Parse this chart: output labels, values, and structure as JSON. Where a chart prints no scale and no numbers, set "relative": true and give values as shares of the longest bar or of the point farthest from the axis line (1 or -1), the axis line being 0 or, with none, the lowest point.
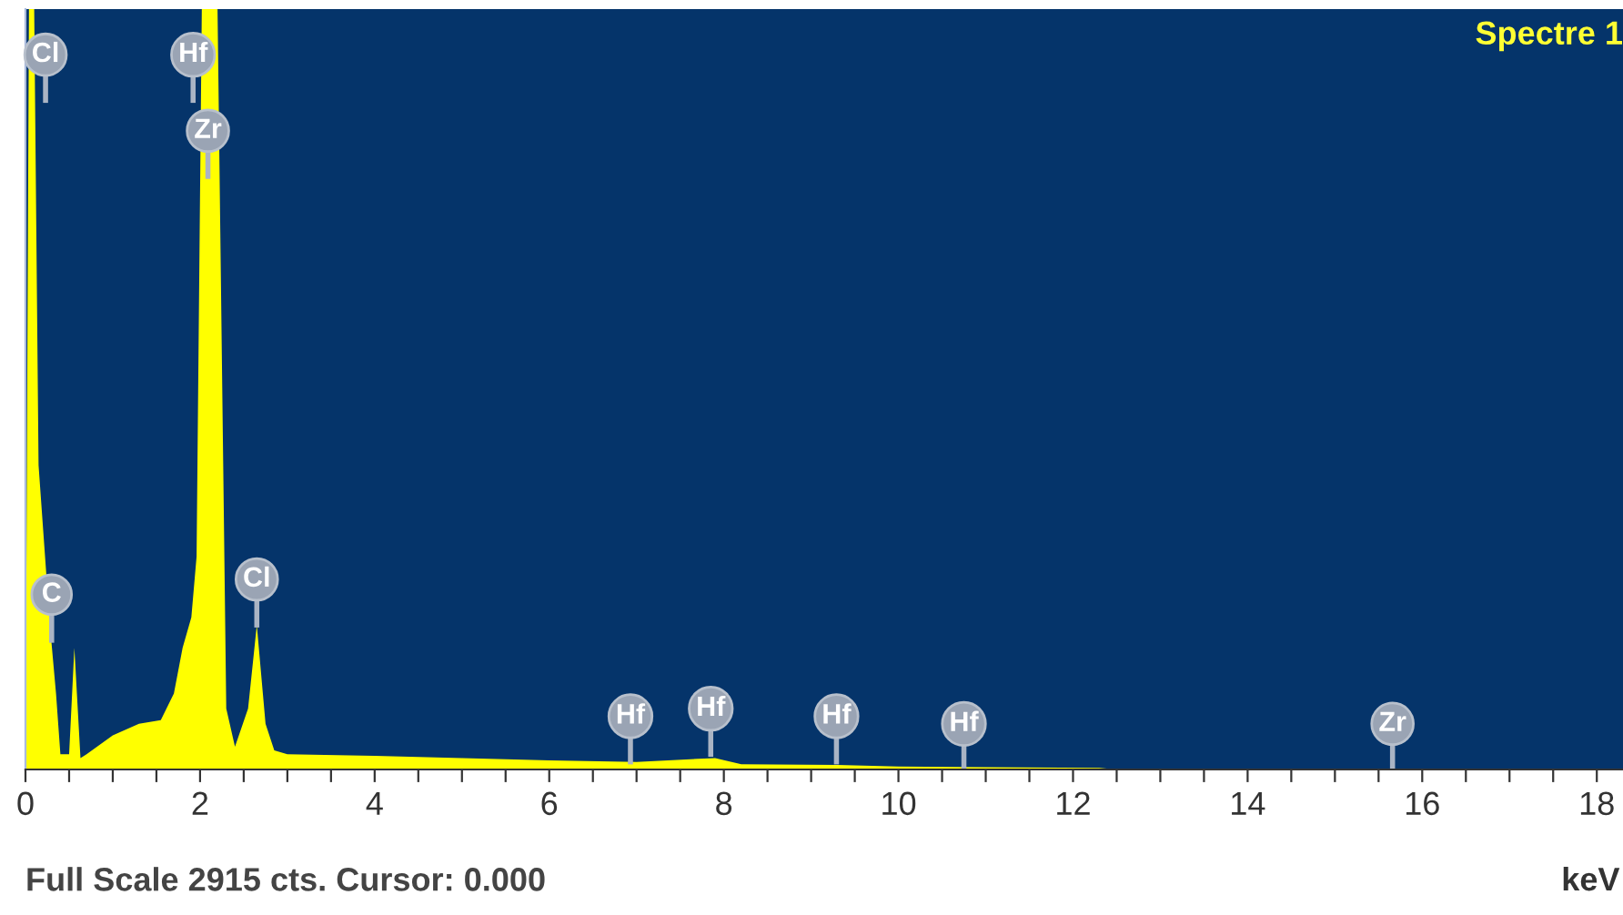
{
  "chart_data": {
    "type": "area",
    "title": "Spectre 1",
    "xlabel": "keV",
    "relative": true,
    "x": [
      0.0,
      0.04,
      0.1,
      0.15,
      0.28,
      0.35,
      0.4,
      0.5,
      0.56,
      0.63,
      0.7,
      1.0,
      1.3,
      1.55,
      1.7,
      1.8,
      1.9,
      1.96,
      2.02,
      2.2,
      2.3,
      2.4,
      2.55,
      2.65,
      2.75,
      2.85,
      3.0,
      4.0,
      5.0,
      6.0,
      7.0,
      7.9,
      8.2,
      9.3,
      10.0,
      11.0,
      12.3,
      12.5,
      18.3
    ],
    "series": [
      {
        "color": "#ffff00",
        "values": [
          0,
          1.0,
          1.0,
          0.4,
          0.19,
          0.1,
          0.02,
          0.02,
          0.16,
          0.015,
          0.02,
          0.045,
          0.06,
          0.065,
          0.1,
          0.16,
          0.2,
          0.28,
          1.0,
          1.0,
          0.08,
          0.03,
          0.08,
          0.19,
          0.06,
          0.025,
          0.02,
          0.018,
          0.015,
          0.012,
          0.01,
          0.015,
          0.007,
          0.006,
          0.004,
          0.003,
          0.002,
          0,
          0
        ]
      }
    ],
    "xlim": [
      0,
      18.3
    ],
    "xticks": [
      0,
      {
        "value": 0.5,
        "label": null
      },
      {
        "value": 1,
        "label": null
      },
      {
        "value": 1.5,
        "label": null
      },
      2,
      {
        "value": 2.5,
        "label": null
      },
      {
        "value": 3,
        "label": null
      },
      {
        "value": 3.5,
        "label": null
      },
      4,
      {
        "value": 4.5,
        "label": null
      },
      {
        "value": 5,
        "label": null
      },
      {
        "value": 5.5,
        "label": null
      },
      6,
      {
        "value": 6.5,
        "label": null
      },
      {
        "value": 7,
        "label": null
      },
      {
        "value": 7.5,
        "label": null
      },
      8,
      {
        "value": 8.5,
        "label": null
      },
      {
        "value": 9,
        "label": null
      },
      {
        "value": 9.5,
        "label": null
      },
      10,
      {
        "value": 10.5,
        "label": null
      },
      {
        "value": 11,
        "label": null
      },
      {
        "value": 11.5,
        "label": null
      },
      12,
      {
        "value": 12.5,
        "label": null
      },
      {
        "value": 13,
        "label": null
      },
      {
        "value": 13.5,
        "label": null
      },
      14,
      {
        "value": 14.5,
        "label": null
      },
      {
        "value": 15,
        "label": null
      },
      {
        "value": 15.5,
        "label": null
      },
      16,
      {
        "value": 16.5,
        "label": null
      },
      {
        "value": 17,
        "label": null
      },
      {
        "value": 17.5,
        "label": null
      },
      18
    ],
    "grid": false,
    "annotations": [
      {
        "text": "Cl",
        "x": 0.23,
        "y": 0.94
      },
      {
        "text": "Hf",
        "x": 1.92,
        "y": 0.94
      },
      {
        "text": "Zr",
        "x": 2.09,
        "y": 0.84
      },
      {
        "text": "C",
        "x": 0.3,
        "y": 0.23
      },
      {
        "text": "Cl",
        "x": 2.65,
        "y": 0.25
      },
      {
        "text": "Hf",
        "x": 6.93,
        "y": 0.07
      },
      {
        "text": "Hf",
        "x": 7.85,
        "y": 0.08
      },
      {
        "text": "Hf",
        "x": 9.29,
        "y": 0.07
      },
      {
        "text": "Hf",
        "x": 10.75,
        "y": 0.06
      },
      {
        "text": "Zr",
        "x": 15.66,
        "y": 0.06
      },
      "Full Scale 2915 cts. Cursor: 0.000"
    ]
  }
}
